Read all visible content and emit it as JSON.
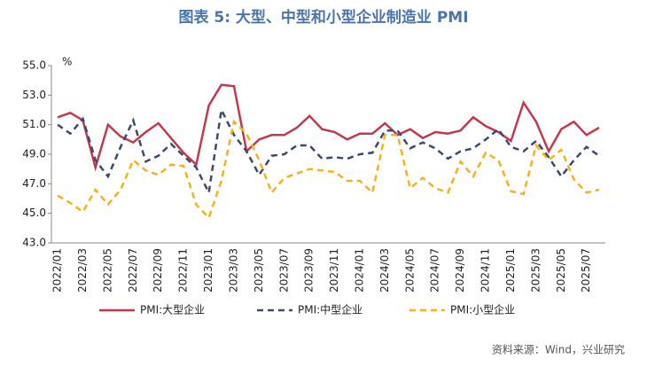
{
  "chart_data": {
    "type": "line",
    "title": "图表 5:   大型、中型和小型企业制造业 PMI",
    "y_unit": "%",
    "source": "资料来源：Wind，兴业研究",
    "categories": [
      "2022/01",
      null,
      "2022/03",
      null,
      "2022/05",
      null,
      "2022/07",
      null,
      "2022/09",
      null,
      "2022/11",
      null,
      "2023/01",
      null,
      "2023/03",
      null,
      "2023/05",
      null,
      "2023/07",
      null,
      "2023/09",
      null,
      "2023/11",
      null,
      "2024/01",
      null,
      "2024/03",
      null,
      "2024/05",
      null,
      "2024/07",
      null,
      "2024/09",
      null,
      "2024/11",
      null,
      "2025/01",
      null,
      "2025/03",
      null,
      "2025/05",
      null,
      "2025/07",
      null
    ],
    "series": [
      {
        "name": "PMI:大型企业",
        "color": "#c0394f",
        "dash": "solid",
        "values": [
          51.5,
          51.8,
          51.3,
          48.1,
          51.0,
          50.2,
          49.8,
          50.5,
          51.1,
          50.1,
          49.1,
          48.3,
          52.3,
          53.7,
          53.6,
          49.2,
          50.0,
          50.3,
          50.3,
          50.8,
          51.6,
          50.7,
          50.5,
          50.0,
          50.4,
          50.4,
          51.1,
          50.3,
          50.7,
          50.1,
          50.5,
          50.4,
          50.6,
          51.5,
          50.9,
          50.5,
          49.9,
          52.5,
          51.2,
          49.2,
          50.7,
          51.2,
          50.3,
          50.8
        ]
      },
      {
        "name": "PMI:中型企业",
        "color": "#3d4a6b",
        "dash": "dashed",
        "values": [
          51.0,
          50.4,
          51.4,
          48.6,
          47.5,
          49.5,
          51.3,
          48.5,
          48.9,
          49.7,
          48.9,
          48.1,
          46.4,
          52.0,
          50.3,
          49.2,
          47.6,
          48.9,
          49.0,
          49.6,
          49.6,
          48.7,
          48.8,
          48.7,
          49.0,
          49.1,
          50.6,
          50.6,
          49.4,
          49.8,
          49.4,
          48.7,
          49.2,
          49.4,
          50.0,
          50.7,
          49.5,
          49.2,
          49.9,
          48.8,
          47.5,
          48.6,
          49.5,
          48.9
        ]
      },
      {
        "name": "PMI:小型企业",
        "color": "#f0b323",
        "dash": "dashed",
        "values": [
          46.2,
          45.7,
          45.1,
          46.6,
          45.6,
          46.6,
          48.6,
          47.9,
          47.6,
          48.3,
          48.2,
          45.6,
          44.7,
          47.2,
          51.2,
          50.4,
          48.6,
          46.4,
          47.4,
          47.7,
          48.0,
          47.9,
          47.8,
          47.2,
          47.2,
          46.4,
          50.3,
          50.3,
          46.7,
          47.4,
          46.7,
          46.4,
          48.5,
          47.5,
          49.1,
          48.6,
          46.5,
          46.3,
          49.6,
          48.6,
          49.3,
          47.3,
          46.4,
          46.6
        ]
      }
    ],
    "ylim": [
      43,
      55
    ],
    "yticks": [
      {
        "value": 43,
        "label": "43.0"
      },
      {
        "value": 45,
        "label": "45.0"
      },
      {
        "value": 47,
        "label": "47.0"
      },
      {
        "value": 49,
        "label": "49.0"
      },
      {
        "value": 51,
        "label": "51.0"
      },
      {
        "value": 53,
        "label": "53.0"
      },
      {
        "value": 55,
        "label": "55.0"
      }
    ],
    "grid": false,
    "legend": "bottom"
  }
}
